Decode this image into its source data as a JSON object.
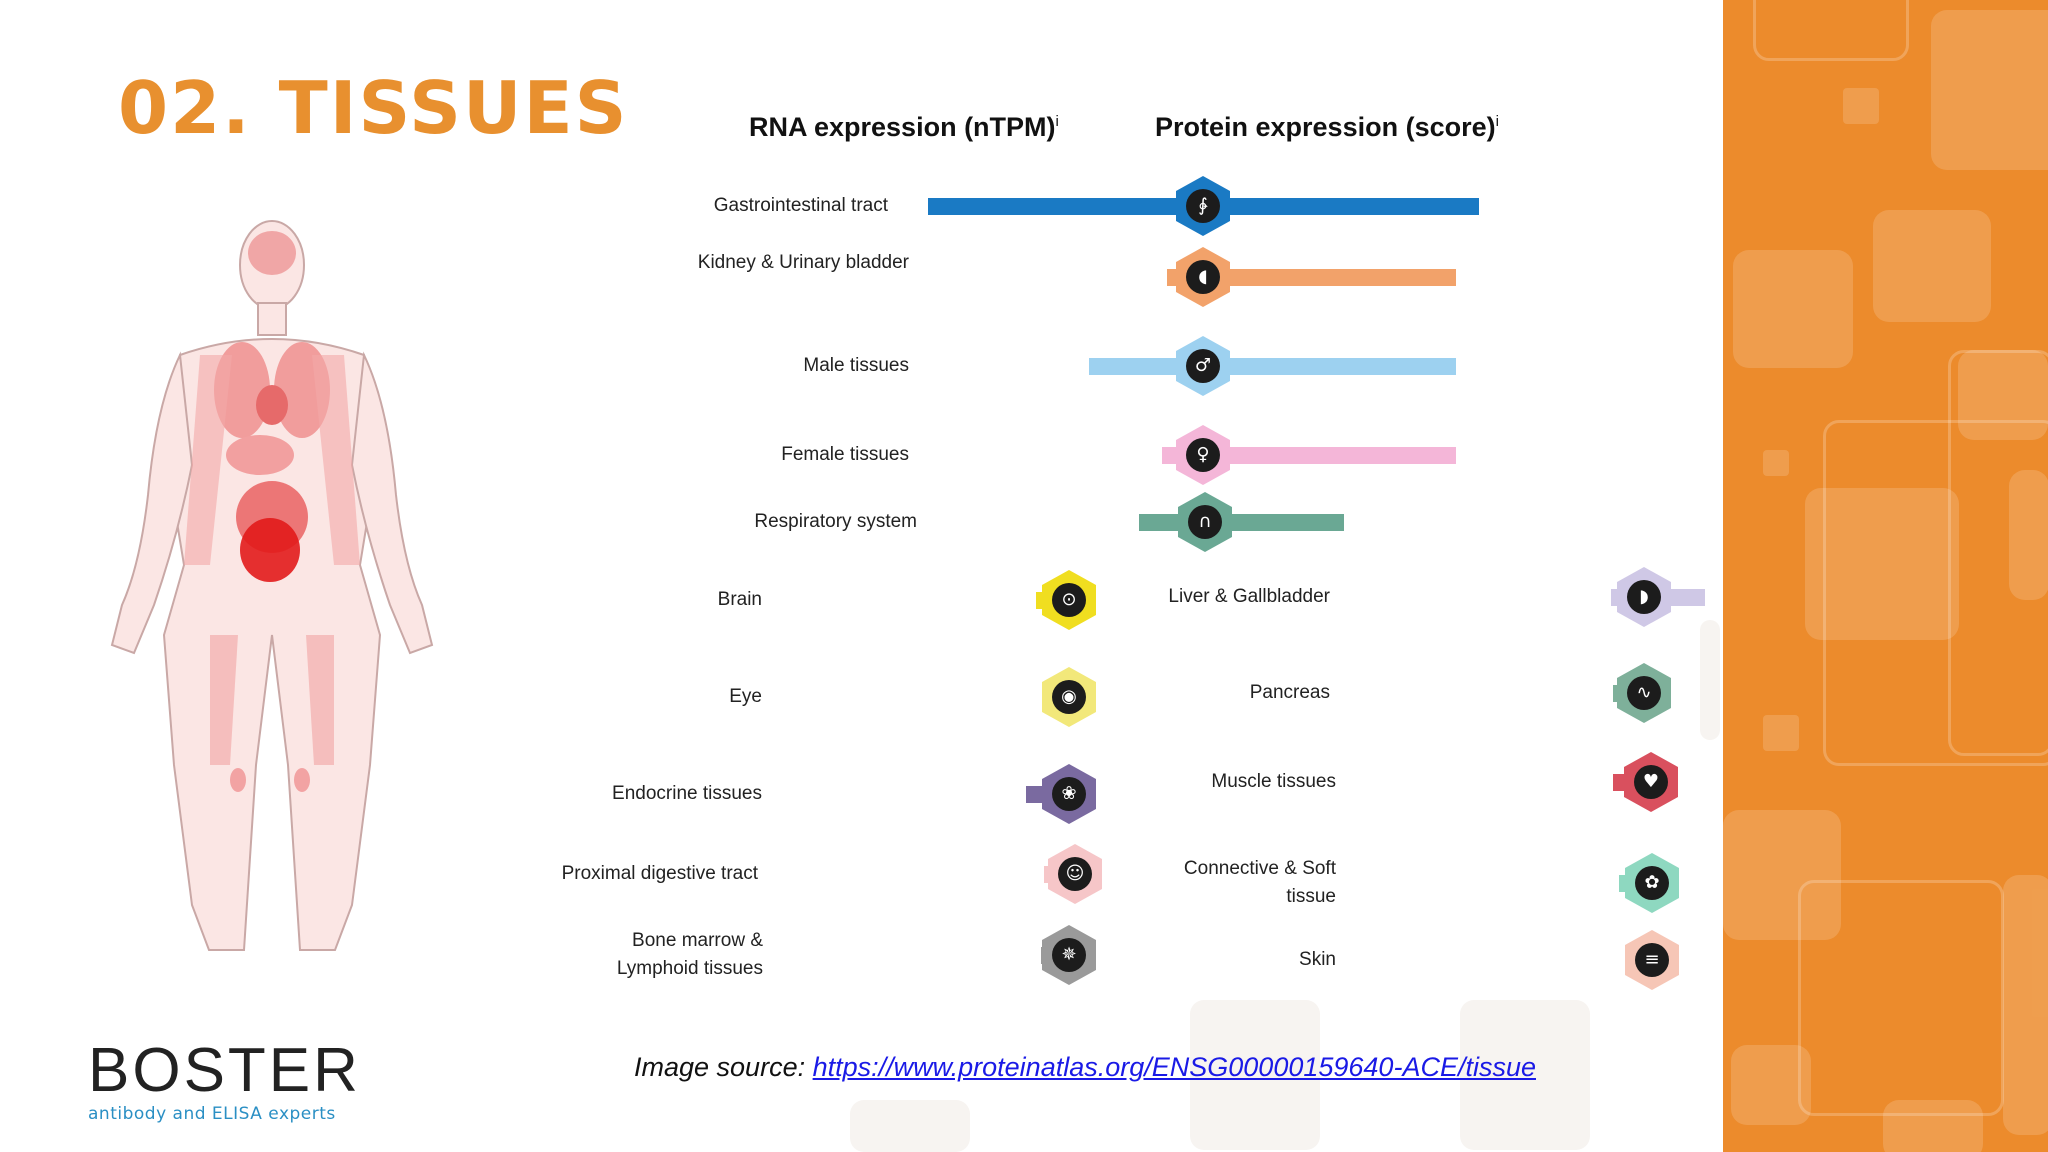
{
  "slide": {
    "title": "02. TISSUES"
  },
  "headers": {
    "rna": "RNA expression (nTPM)",
    "protein": "Protein expression (score)",
    "info_mark": "i"
  },
  "colors": {
    "accent_orange": "#ec8b2c",
    "title_orange": "#e8902f",
    "link_blue": "#1a1ae6",
    "logo_blue": "#2a8fc4"
  },
  "chart_data": {
    "type": "bar",
    "orientation": "diverging",
    "title": "",
    "categories": [
      "Gastrointestinal tract",
      "Kidney & Urinary bladder",
      "Male tissues",
      "Female tissues",
      "Respiratory system",
      "Brain",
      "Eye",
      "Endocrine tissues",
      "Proximal digestive tract",
      "Bone marrow & Lymphoid tissues",
      "Liver & Gallbladder",
      "Pancreas",
      "Muscle tissues",
      "Connective & Soft tissue",
      "Skin"
    ],
    "colors": [
      "#1a7ac4",
      "#f2a26a",
      "#9dd1f0",
      "#f4b6d8",
      "#6aa894",
      "#f0de20",
      "#f2e87a",
      "#7a6aa0",
      "#f6c6c8",
      "#9a9a9a",
      "#cfc8e6",
      "#7eb09a",
      "#d9505e",
      "#8ed8c0",
      "#f6c6b6"
    ],
    "icons": [
      "stomach-icon",
      "kidney-icon",
      "male-organ-icon",
      "uterus-icon",
      "lungs-icon",
      "brain-icon",
      "eye-icon",
      "thyroid-icon",
      "head-icon",
      "bone-marrow-icon",
      "liver-icon",
      "pancreas-icon",
      "heart-muscle-icon",
      "cells-icon",
      "skin-icon"
    ],
    "series": [
      {
        "name": "RNA expression (nTPM)",
        "values": [
          100,
          5,
          36,
          7,
          17,
          4,
          1,
          8,
          3,
          2,
          4,
          3,
          6,
          4,
          1
        ]
      },
      {
        "name": "Protein expression (score)",
        "values": [
          100,
          91,
          91,
          91,
          46,
          0,
          0,
          0,
          0,
          0,
          15,
          0,
          0,
          0,
          0
        ]
      }
    ]
  },
  "source": {
    "prefix": "Image source: ",
    "url": "https://www.proteinatlas.org/ENSG00000159640-ACE/tissue"
  },
  "logo": {
    "word": "BOSTER",
    "tagline": "antibody and ELISA experts"
  }
}
